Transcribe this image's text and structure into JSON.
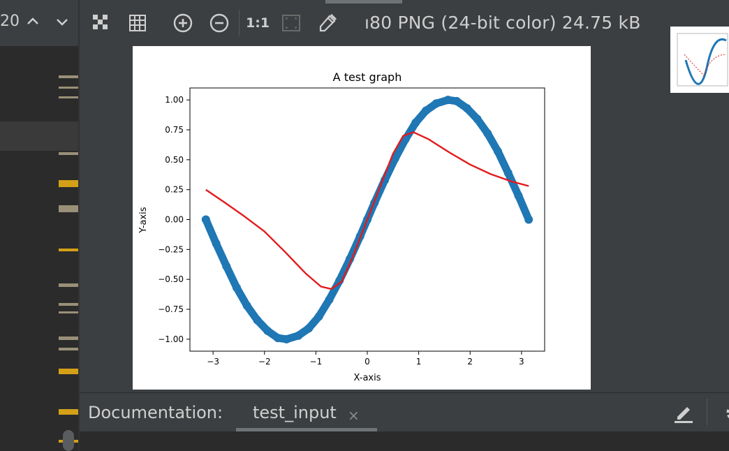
{
  "left_panel": {
    "counter": "20",
    "up_icon": "chevron-up-icon",
    "down_icon": "chevron-down-icon"
  },
  "toolbar": {
    "icons": [
      "checkerboard-icon",
      "grid-icon",
      "zoom-in-icon",
      "zoom-out-icon",
      "actual-size-icon",
      "fit-to-window-icon",
      "color-picker-icon"
    ],
    "actual_size_label": "1:1",
    "image_info": "ı80 PNG (24-bit color) 24.75 kB"
  },
  "colors": {
    "background": "#3c3f41",
    "panel_dark": "#2b2b2b",
    "marker_gold": "#d4a017",
    "marker_tan": "#9a9078",
    "series_blue": "#1f77b4",
    "series_red": "#e31a1c"
  },
  "chart_data": {
    "type": "scatter",
    "title": "A test graph",
    "xlabel": "X-axis",
    "ylabel": "Y-axis",
    "xlim": [
      -3.45,
      3.45
    ],
    "ylim": [
      -1.1,
      1.1
    ],
    "xticks": [
      "−3",
      "−2",
      "−1",
      "0",
      "1",
      "2",
      "3"
    ],
    "yticks": [
      "−1.00",
      "−0.75",
      "−0.50",
      "−0.25",
      "0.00",
      "0.25",
      "0.50",
      "0.75",
      "1.00"
    ],
    "series": [
      {
        "kind": "scatter",
        "color": "#1f77b4",
        "x": [
          -3.14,
          -2.94,
          -2.74,
          -2.54,
          -2.34,
          -2.14,
          -1.94,
          -1.74,
          -1.57,
          -1.34,
          -1.14,
          -0.94,
          -0.74,
          -0.54,
          -0.34,
          -0.14,
          0.0,
          0.14,
          0.34,
          0.54,
          0.74,
          0.94,
          1.14,
          1.34,
          1.57,
          1.74,
          1.94,
          2.14,
          2.34,
          2.54,
          2.74,
          2.94,
          3.14
        ],
        "y": [
          0.0,
          -0.2,
          -0.39,
          -0.57,
          -0.72,
          -0.84,
          -0.93,
          -0.99,
          -1.0,
          -0.97,
          -0.91,
          -0.81,
          -0.67,
          -0.51,
          -0.33,
          -0.14,
          0.0,
          0.14,
          0.33,
          0.51,
          0.67,
          0.81,
          0.91,
          0.97,
          1.0,
          0.99,
          0.93,
          0.84,
          0.72,
          0.57,
          0.39,
          0.2,
          0.0
        ]
      },
      {
        "kind": "line",
        "color": "#e31a1c",
        "x": [
          -3.14,
          -2.8,
          -2.4,
          -2.0,
          -1.6,
          -1.2,
          -0.9,
          -0.7,
          -0.5,
          -0.3,
          0.0,
          0.3,
          0.5,
          0.7,
          0.9,
          1.2,
          1.6,
          2.0,
          2.4,
          2.8,
          3.14
        ],
        "y": [
          0.25,
          0.15,
          0.03,
          -0.1,
          -0.27,
          -0.45,
          -0.56,
          -0.58,
          -0.52,
          -0.33,
          0.0,
          0.33,
          0.55,
          0.7,
          0.73,
          0.67,
          0.56,
          0.46,
          0.38,
          0.32,
          0.28
        ]
      }
    ]
  },
  "doc_panel": {
    "label": "Documentation:",
    "tab": "test_input",
    "close": "×"
  }
}
